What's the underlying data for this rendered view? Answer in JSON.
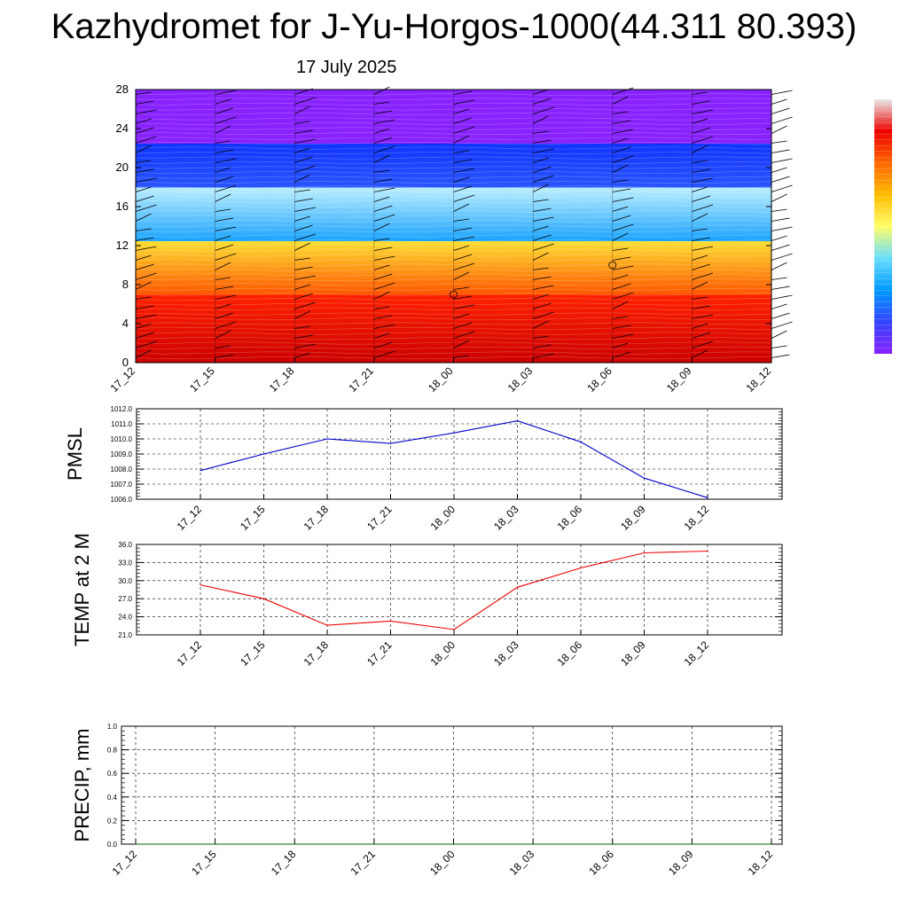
{
  "title": "Kazhydromet for J-Yu-Horgos-1000(44.311 80.393)",
  "subtitle": "17 July 2025",
  "chart_data": [
    {
      "type": "heatmap",
      "description_of_field": "time-height cross section, color-filled contours with wind barbs",
      "x_ticks": [
        "17_12",
        "17_15",
        "17_18",
        "17_21",
        "18_00",
        "18_03",
        "18_06",
        "18_09",
        "18_12"
      ],
      "y_ticks": [
        0,
        4,
        8,
        12,
        16,
        20,
        24,
        28
      ],
      "ylim": [
        0,
        28
      ],
      "colorbar_colors": [
        "#e8e8e8",
        "#ee0000",
        "#ff6600",
        "#ffbb00",
        "#ffff66",
        "#66ddff",
        "#0099ff",
        "#3344ff",
        "#8822ff"
      ],
      "color_bands": [
        {
          "from": 0,
          "to": 7,
          "color_top": "#ff2200",
          "color_bottom": "#cc0000"
        },
        {
          "from": 7,
          "to": 12.5,
          "color_top": "#ffe033",
          "color_bottom": "#ff5500"
        },
        {
          "from": 12.5,
          "to": 18,
          "color_top": "#bdefff",
          "color_bottom": "#1aa3ff"
        },
        {
          "from": 18,
          "to": 22.5,
          "color_top": "#1133ff",
          "color_bottom": "#2a55ff"
        },
        {
          "from": 22.5,
          "to": 28,
          "color_top": "#8822ff",
          "color_bottom": "#8822ff"
        }
      ],
      "calm_markers": [
        {
          "x": "18_00",
          "y": 7
        },
        {
          "x": "18_06",
          "y": 10
        }
      ]
    },
    {
      "type": "line",
      "ylabel": "PMSL",
      "x": [
        "17_12",
        "17_15",
        "17_18",
        "17_21",
        "18_00",
        "18_03",
        "18_06",
        "18_09",
        "18_12"
      ],
      "series": [
        {
          "values": [
            1007.9,
            1009.0,
            1010.0,
            1009.7,
            1010.4,
            1011.2,
            1009.8,
            1007.4,
            1006.1
          ],
          "color": "#0000cc"
        }
      ],
      "y_ticks": [
        "1006.0",
        "1007.0",
        "1008.0",
        "1009.0",
        "1010.0",
        "1011.0",
        "1012.0"
      ],
      "ylim": [
        1006,
        1012
      ],
      "grid": true
    },
    {
      "type": "line",
      "ylabel": "TEMP at 2 M",
      "x": [
        "17_12",
        "17_15",
        "17_18",
        "17_21",
        "18_00",
        "18_03",
        "18_06",
        "18_09",
        "18_12"
      ],
      "series": [
        {
          "values": [
            29.3,
            27.0,
            22.6,
            23.3,
            21.9,
            28.9,
            32.1,
            34.6,
            34.9
          ],
          "color": "#ee0000"
        }
      ],
      "y_ticks": [
        "21.0",
        "24.0",
        "27.0",
        "30.0",
        "33.0",
        "36.0"
      ],
      "ylim": [
        21,
        36
      ],
      "grid": true
    },
    {
      "type": "line",
      "ylabel": "PRECIP, mm",
      "x": [
        "17_12",
        "17_15",
        "17_18",
        "17_21",
        "18_00",
        "18_03",
        "18_06",
        "18_09",
        "18_12"
      ],
      "series": [
        {
          "values": [
            0,
            0,
            0,
            0,
            0,
            0,
            0,
            0,
            0
          ],
          "color": "#006600"
        }
      ],
      "y_ticks": [
        "0.0",
        "0.2",
        "0.4",
        "0.6",
        "0.8",
        "1.0"
      ],
      "ylim": [
        0,
        1
      ],
      "grid": true
    }
  ]
}
